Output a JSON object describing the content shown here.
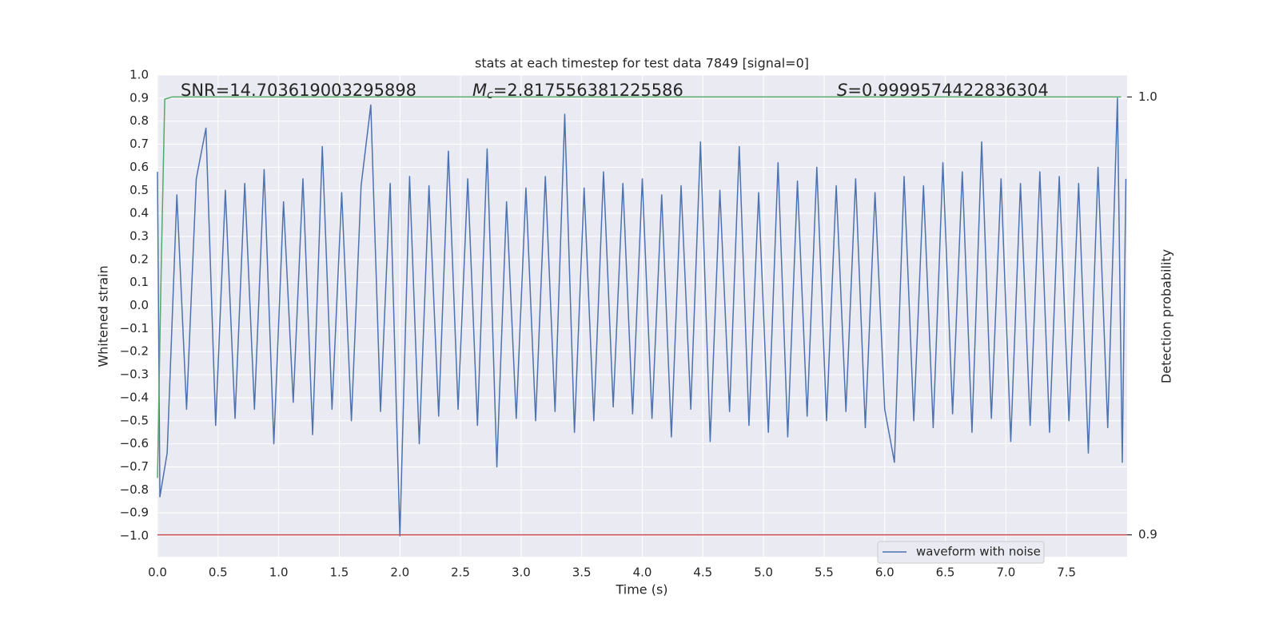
{
  "chart_data": {
    "type": "line",
    "title": "stats at each timestep for test data 7849 [signal=0]",
    "xlabel": "Time (s)",
    "ylabel": "Whitened strain",
    "y2label": "Detection probability",
    "annotations": [
      {
        "text": "SNR=14.703619003295898"
      },
      {
        "symbol": "M",
        "subscript": "c",
        "text": "=2.817556381225586"
      },
      {
        "symbol": "S",
        "text": "=0.9999574422836304"
      }
    ],
    "xlim": [
      0,
      8.0
    ],
    "ylim": [
      -1.09,
      1.0
    ],
    "y2lim": [
      0.895,
      1.005
    ],
    "xticks": [
      {
        "value": 0,
        "label": "0.0"
      },
      0.5,
      {
        "value": 1,
        "label": "1.0"
      },
      1.5,
      {
        "value": 2,
        "label": "2.0"
      },
      2.5,
      {
        "value": 3,
        "label": "3.0"
      },
      3.5,
      {
        "value": 4,
        "label": "4.0"
      },
      4.5,
      {
        "value": 5,
        "label": "5.0"
      },
      5.5,
      {
        "value": 6,
        "label": "6.0"
      },
      6.5,
      {
        "value": 7,
        "label": "7.0"
      },
      7.5
    ],
    "yticks": [
      {
        "value": -1,
        "label": "−1.0"
      },
      {
        "value": -0.9,
        "label": "−0.9"
      },
      {
        "value": -0.8,
        "label": "−0.8"
      },
      {
        "value": -0.7,
        "label": "−0.7"
      },
      {
        "value": -0.6,
        "label": "−0.6"
      },
      {
        "value": -0.5,
        "label": "−0.5"
      },
      {
        "value": -0.4,
        "label": "−0.4"
      },
      {
        "value": -0.3,
        "label": "−0.3"
      },
      {
        "value": -0.2,
        "label": "−0.2"
      },
      {
        "value": -0.1,
        "label": "−0.1"
      },
      {
        "value": 0,
        "label": "0.0"
      },
      0.1,
      0.2,
      0.3,
      0.4,
      0.5,
      0.6,
      0.7,
      0.8,
      0.9,
      {
        "value": 1,
        "label": "1.0"
      }
    ],
    "y2ticks": [
      0.9,
      {
        "value": 1,
        "label": "1.0"
      }
    ],
    "grid": true,
    "legend": "lower right",
    "series": [
      {
        "name": "waveform with noise",
        "color": "#4c72b0",
        "x": [
          0,
          0.02,
          0.08,
          0.16,
          0.24,
          0.32,
          0.4,
          0.48,
          0.56,
          0.64,
          0.72,
          0.8,
          0.88,
          0.96,
          1.04,
          1.12,
          1.2,
          1.28,
          1.36,
          1.44,
          1.52,
          1.6,
          1.68,
          1.76,
          1.84,
          1.92,
          2.0,
          2.08,
          2.16,
          2.24,
          2.32,
          2.4,
          2.48,
          2.56,
          2.64,
          2.72,
          2.8,
          2.88,
          2.96,
          3.04,
          3.12,
          3.2,
          3.28,
          3.36,
          3.44,
          3.52,
          3.6,
          3.68,
          3.76,
          3.84,
          3.92,
          4.0,
          4.08,
          4.16,
          4.24,
          4.32,
          4.4,
          4.48,
          4.56,
          4.64,
          4.72,
          4.8,
          4.88,
          4.96,
          5.04,
          5.12,
          5.2,
          5.28,
          5.36,
          5.44,
          5.52,
          5.6,
          5.68,
          5.76,
          5.84,
          5.92,
          6.0,
          6.08,
          6.16,
          6.24,
          6.32,
          6.4,
          6.48,
          6.56,
          6.64,
          6.72,
          6.8,
          6.88,
          6.96,
          7.04,
          7.12,
          7.2,
          7.28,
          7.36,
          7.44,
          7.52,
          7.6,
          7.68,
          7.76,
          7.84,
          7.92,
          7.96,
          7.99
        ],
        "values": [
          0.58,
          -0.83,
          -0.64,
          0.48,
          -0.45,
          0.55,
          0.77,
          -0.52,
          0.5,
          -0.49,
          0.53,
          -0.45,
          0.59,
          -0.6,
          0.45,
          -0.42,
          0.55,
          -0.56,
          0.69,
          -0.45,
          0.49,
          -0.5,
          0.52,
          0.87,
          -0.46,
          0.53,
          -1.0,
          0.56,
          -0.6,
          0.52,
          -0.48,
          0.67,
          -0.45,
          0.55,
          -0.52,
          0.68,
          -0.7,
          0.45,
          -0.49,
          0.51,
          -0.5,
          0.56,
          -0.46,
          0.83,
          -0.55,
          0.51,
          -0.5,
          0.58,
          -0.44,
          0.53,
          -0.47,
          0.55,
          -0.49,
          0.48,
          -0.57,
          0.52,
          -0.45,
          0.71,
          -0.59,
          0.5,
          -0.46,
          0.69,
          -0.52,
          0.49,
          -0.55,
          0.62,
          -0.57,
          0.54,
          -0.48,
          0.6,
          -0.5,
          0.52,
          -0.46,
          0.55,
          -0.53,
          0.49,
          -0.45,
          -0.68,
          0.56,
          -0.5,
          0.52,
          -0.53,
          0.62,
          -0.47,
          0.58,
          -0.55,
          0.71,
          -0.49,
          0.55,
          -0.59,
          0.53,
          -0.52,
          0.58,
          -0.55,
          0.56,
          -0.5,
          0.53,
          -0.64,
          0.6,
          -0.53,
          0.9,
          -0.68,
          0.55
        ]
      },
      {
        "color": "#c44e52",
        "axis": "y2",
        "x": [
          0,
          8.0
        ],
        "values": [
          0.9,
          0.9
        ]
      },
      {
        "color": "#55a868",
        "axis": "y2",
        "x": [
          0,
          0.03,
          0.06,
          0.12,
          7.95
        ],
        "values": [
          0.913,
          0.96,
          0.9995,
          1.0,
          1.0
        ]
      }
    ]
  }
}
